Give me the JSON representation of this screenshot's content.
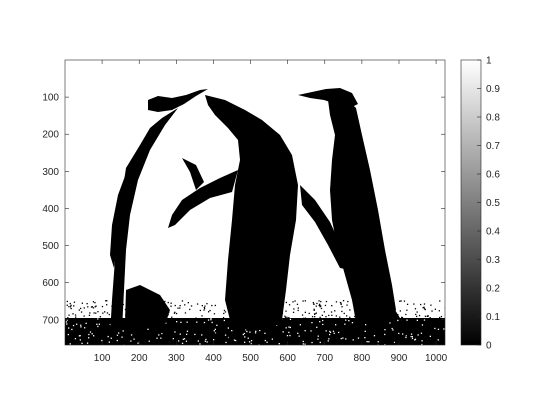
{
  "chart_data": {
    "type": "heatmap",
    "title": "",
    "xlabel": "",
    "ylabel": "",
    "xlim": [
      0,
      1024
    ],
    "ylim": [
      0,
      768
    ],
    "y_direction": "reverse",
    "x_ticks": [
      100,
      200,
      300,
      400,
      500,
      600,
      700,
      800,
      900,
      1000
    ],
    "y_ticks": [
      100,
      200,
      300,
      400,
      500,
      600,
      700
    ],
    "grid": false,
    "colormap": "gray",
    "colorbar": {
      "range": [
        0,
        1
      ],
      "ticks": [
        0,
        0.1,
        0.2,
        0.3,
        0.4,
        0.5,
        0.6,
        0.7,
        0.8,
        0.9,
        1
      ]
    },
    "image_description": "Binary thresholded photograph of king penguins: dark bodies and heads on a white background, speckled dark ground band along the bottom.",
    "colors": {
      "dark": "#000000",
      "light": "#ffffff",
      "axis": "#262626"
    }
  }
}
